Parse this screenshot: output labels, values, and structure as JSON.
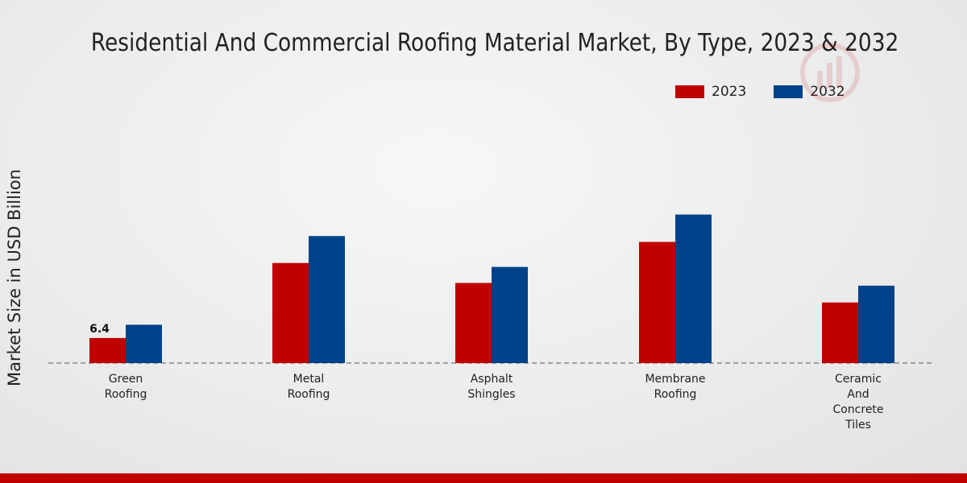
{
  "chart_data": {
    "type": "bar",
    "title": "Residential And Commercial Roofing Material Market, By Type, 2023 & 2032",
    "xlabel": "",
    "ylabel": "Market Size in USD Billion",
    "categories": [
      [
        "Green",
        "Roofing"
      ],
      [
        "Metal",
        "Roofing"
      ],
      [
        "Asphalt",
        "Shingles"
      ],
      [
        "Membrane",
        "Roofing"
      ],
      [
        "Ceramic",
        "And",
        "Concrete",
        "Tiles"
      ]
    ],
    "series": [
      {
        "name": "2023",
        "color": "#c00000",
        "values": [
          6.4,
          25.6,
          20.5,
          31.0,
          15.5
        ]
      },
      {
        "name": "2032",
        "color": "#004289",
        "values": [
          9.8,
          32.5,
          24.6,
          38.0,
          19.8
        ]
      }
    ],
    "data_labels": [
      {
        "series": 0,
        "category": 0,
        "text": "6.4"
      }
    ],
    "ylim": [
      0,
      62
    ],
    "grid": false,
    "legend_position": "top-right"
  }
}
